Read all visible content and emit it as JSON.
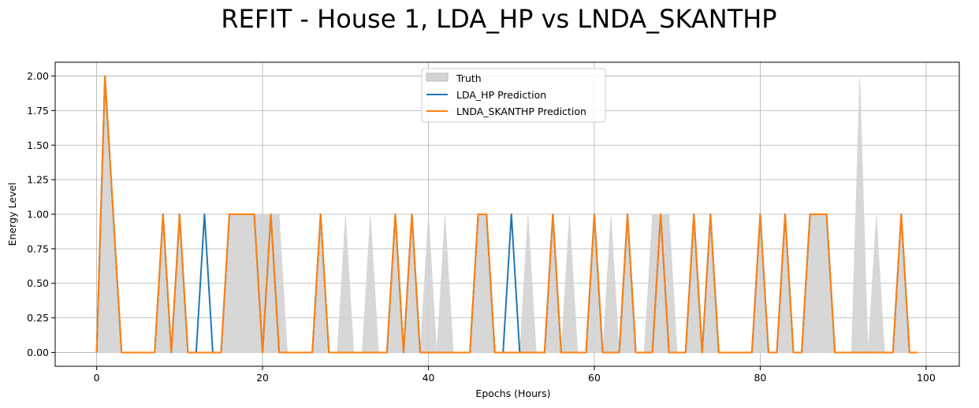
{
  "chart_data": {
    "type": "line",
    "title": "REFIT - House 1, LDA_HP vs LNDA_SKANTHP",
    "xlabel": "Epochs (Hours)",
    "ylabel": "Energy Level",
    "xlim": [
      -5,
      104
    ],
    "ylim": [
      -0.1,
      2.1
    ],
    "xticks": [
      0,
      20,
      40,
      60,
      80,
      100
    ],
    "yticks": [
      "0.00",
      "0.25",
      "0.50",
      "0.75",
      "1.00",
      "1.25",
      "1.50",
      "1.75",
      "2.00"
    ],
    "grid": true,
    "legend_position": "upper-center",
    "series": [
      {
        "name": "Truth",
        "kind": "area",
        "color": "#d3d3d3",
        "values": [
          0,
          2,
          1,
          0,
          0,
          0,
          0,
          0,
          1,
          0,
          1,
          0,
          0,
          0,
          0,
          0,
          1,
          1,
          1,
          1,
          1,
          1,
          1,
          0,
          0,
          0,
          0,
          1,
          0,
          0,
          1,
          0,
          0,
          1,
          0,
          0,
          1,
          0,
          1,
          0,
          1,
          0,
          1,
          0,
          0,
          0,
          1,
          1,
          0,
          0,
          0,
          0,
          1,
          0,
          0,
          1,
          0,
          1,
          0,
          0,
          1,
          0,
          1,
          0,
          1,
          0,
          0,
          1,
          1,
          1,
          0,
          0,
          1,
          0,
          1,
          0,
          0,
          0,
          0,
          0,
          1,
          0,
          0,
          1,
          0,
          0,
          1,
          1,
          1,
          0,
          0,
          0,
          2,
          0,
          1,
          0,
          0,
          1,
          0,
          0
        ]
      },
      {
        "name": "LDA_HP Prediction",
        "kind": "line",
        "color": "#1f77b4",
        "values": [
          0,
          2,
          1,
          0,
          0,
          0,
          0,
          0,
          1,
          0,
          1,
          0,
          0,
          1,
          0,
          0,
          1,
          1,
          1,
          1,
          0,
          1,
          0,
          0,
          0,
          0,
          0,
          1,
          0,
          0,
          0,
          0,
          0,
          0,
          0,
          0,
          1,
          0,
          1,
          0,
          0,
          0,
          0,
          0,
          0,
          0,
          1,
          1,
          0,
          0,
          1,
          0,
          0,
          0,
          0,
          1,
          0,
          0,
          0,
          0,
          1,
          0,
          0,
          0,
          1,
          0,
          0,
          0,
          1,
          0,
          0,
          0,
          1,
          0,
          1,
          0,
          0,
          0,
          0,
          0,
          1,
          0,
          0,
          1,
          0,
          0,
          1,
          1,
          1,
          0,
          0,
          0,
          0,
          0,
          0,
          0,
          0,
          1,
          0,
          0
        ]
      },
      {
        "name": "LNDA_SKANTHP Prediction",
        "kind": "line",
        "color": "#ff7f0e",
        "values": [
          0,
          2,
          1,
          0,
          0,
          0,
          0,
          0,
          1,
          0,
          1,
          0,
          0,
          0,
          0,
          0,
          1,
          1,
          1,
          1,
          0,
          1,
          0,
          0,
          0,
          0,
          0,
          1,
          0,
          0,
          0,
          0,
          0,
          0,
          0,
          0,
          1,
          0,
          1,
          0,
          0,
          0,
          0,
          0,
          0,
          0,
          1,
          1,
          0,
          0,
          0,
          0,
          0,
          0,
          0,
          1,
          0,
          0,
          0,
          0,
          1,
          0,
          0,
          0,
          1,
          0,
          0,
          0,
          1,
          0,
          0,
          0,
          1,
          0,
          1,
          0,
          0,
          0,
          0,
          0,
          1,
          0,
          0,
          1,
          0,
          0,
          1,
          1,
          1,
          0,
          0,
          0,
          0,
          0,
          0,
          0,
          0,
          1,
          0,
          0
        ]
      }
    ]
  }
}
